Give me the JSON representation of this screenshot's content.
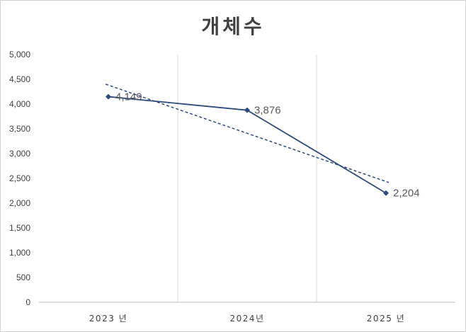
{
  "chart_data": {
    "type": "line",
    "title": "개체수",
    "xlabel": "",
    "ylabel": "",
    "categories": [
      "2023 년",
      "2024년",
      "2025 년"
    ],
    "series": [
      {
        "values": [
          4149,
          3876,
          2204
        ],
        "labels": [
          "4,149",
          "3,876",
          "2,204"
        ],
        "color": "#2f4b7c",
        "marker": "diamond"
      }
    ],
    "trendline": {
      "type": "linear",
      "style": "dashed",
      "color": "#2f4b7c"
    },
    "ylim": [
      0,
      5000
    ],
    "yticks": [
      0,
      500,
      1000,
      1500,
      2000,
      2500,
      3000,
      3500,
      4000,
      4500,
      5000
    ],
    "ytick_labels": [
      "0",
      "500",
      "1,000",
      "1,500",
      "2,000",
      "2,500",
      "3,000",
      "3,500",
      "4,000",
      "4,500",
      "5,000"
    ],
    "grid": {
      "vertical": true,
      "horizontal": false
    },
    "legend": "none"
  }
}
